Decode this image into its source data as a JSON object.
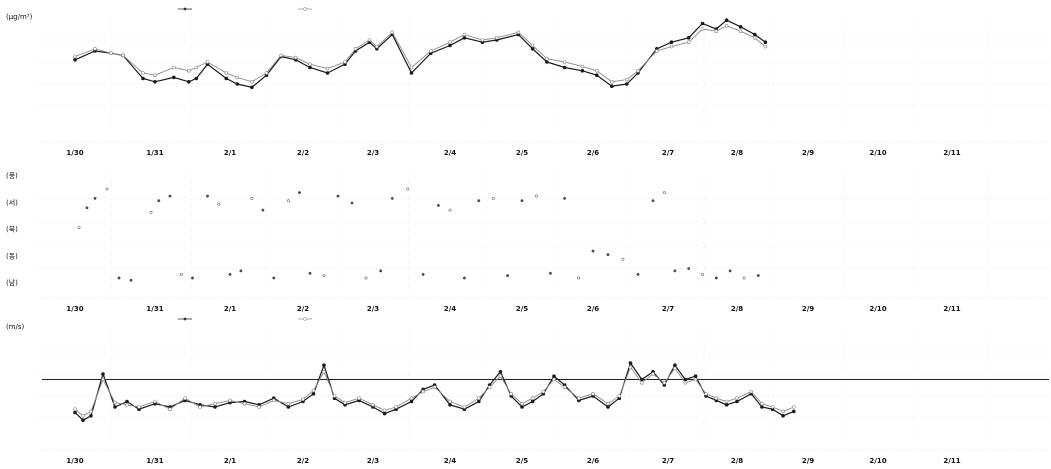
{
  "chart_data": [
    {
      "type": "line",
      "ylabel": "(μg/m³)",
      "x_categories": [
        "1/30",
        "1/31",
        "2/1",
        "2/2",
        "2/3",
        "2/4",
        "2/5",
        "2/6",
        "2/7",
        "2/8",
        "2/9",
        "2/10",
        "2/11"
      ],
      "legend_position": "top",
      "grid": true,
      "colors": {
        "series1": "#1a1a1a",
        "series2": "#8c8c8c"
      },
      "series": [
        {
          "name": "",
          "style": "dark-filled-markers",
          "points": [
            [
              0,
              0.62
            ],
            [
              0.25,
              0.7
            ],
            [
              0.45,
              0.68
            ],
            [
              0.6,
              0.66
            ],
            [
              0.85,
              0.45
            ],
            [
              1.0,
              0.42
            ],
            [
              1.25,
              0.46
            ],
            [
              1.45,
              0.42
            ],
            [
              1.55,
              0.45
            ],
            [
              1.7,
              0.58
            ],
            [
              1.95,
              0.45
            ],
            [
              2.1,
              0.4
            ],
            [
              2.3,
              0.37
            ],
            [
              2.5,
              0.48
            ],
            [
              2.7,
              0.65
            ],
            [
              2.9,
              0.62
            ],
            [
              3.1,
              0.55
            ],
            [
              3.35,
              0.5
            ],
            [
              3.6,
              0.58
            ],
            [
              3.75,
              0.7
            ],
            [
              3.95,
              0.78
            ],
            [
              4.05,
              0.72
            ],
            [
              4.25,
              0.85
            ],
            [
              4.5,
              0.5
            ],
            [
              4.75,
              0.68
            ],
            [
              5.0,
              0.75
            ],
            [
              5.2,
              0.82
            ],
            [
              5.45,
              0.78
            ],
            [
              5.65,
              0.8
            ],
            [
              5.95,
              0.85
            ],
            [
              6.15,
              0.72
            ],
            [
              6.35,
              0.6
            ],
            [
              6.6,
              0.55
            ],
            [
              6.85,
              0.52
            ],
            [
              7.05,
              0.48
            ],
            [
              7.25,
              0.38
            ],
            [
              7.45,
              0.4
            ],
            [
              7.6,
              0.5
            ],
            [
              7.85,
              0.72
            ],
            [
              8.05,
              0.78
            ],
            [
              8.3,
              0.82
            ],
            [
              8.5,
              0.95
            ],
            [
              8.7,
              0.9
            ],
            [
              8.85,
              0.98
            ],
            [
              9.05,
              0.92
            ],
            [
              9.25,
              0.85
            ],
            [
              9.4,
              0.78
            ]
          ]
        },
        {
          "name": "",
          "style": "light-open-markers",
          "points": [
            [
              0,
              0.65
            ],
            [
              0.25,
              0.72
            ],
            [
              0.45,
              0.68
            ],
            [
              0.6,
              0.66
            ],
            [
              0.85,
              0.5
            ],
            [
              1.0,
              0.48
            ],
            [
              1.25,
              0.55
            ],
            [
              1.45,
              0.52
            ],
            [
              1.55,
              0.55
            ],
            [
              1.7,
              0.6
            ],
            [
              1.95,
              0.5
            ],
            [
              2.1,
              0.46
            ],
            [
              2.3,
              0.42
            ],
            [
              2.5,
              0.5
            ],
            [
              2.7,
              0.66
            ],
            [
              2.9,
              0.64
            ],
            [
              3.1,
              0.58
            ],
            [
              3.35,
              0.54
            ],
            [
              3.6,
              0.6
            ],
            [
              3.75,
              0.72
            ],
            [
              3.95,
              0.8
            ],
            [
              4.05,
              0.74
            ],
            [
              4.25,
              0.87
            ],
            [
              4.5,
              0.55
            ],
            [
              4.75,
              0.7
            ],
            [
              5.0,
              0.78
            ],
            [
              5.2,
              0.85
            ],
            [
              5.45,
              0.8
            ],
            [
              5.65,
              0.82
            ],
            [
              5.95,
              0.87
            ],
            [
              6.15,
              0.75
            ],
            [
              6.35,
              0.63
            ],
            [
              6.6,
              0.6
            ],
            [
              6.85,
              0.56
            ],
            [
              7.05,
              0.52
            ],
            [
              7.25,
              0.42
            ],
            [
              7.45,
              0.44
            ],
            [
              7.6,
              0.52
            ],
            [
              7.85,
              0.7
            ],
            [
              8.05,
              0.74
            ],
            [
              8.3,
              0.78
            ],
            [
              8.5,
              0.9
            ],
            [
              8.7,
              0.88
            ],
            [
              8.85,
              0.93
            ],
            [
              9.05,
              0.88
            ],
            [
              9.25,
              0.82
            ],
            [
              9.4,
              0.74
            ]
          ]
        }
      ]
    },
    {
      "type": "scatter",
      "y_tick_labels": [
        "(풍)",
        "(서)",
        "(북)",
        "(동)",
        "(남)"
      ],
      "x_categories": [
        "1/30",
        "1/31",
        "2/1",
        "2/2",
        "2/3",
        "2/4",
        "2/5",
        "2/6",
        "2/7",
        "2/8",
        "2/9",
        "2/10",
        "2/11"
      ],
      "grid": true,
      "series": [
        {
          "name": "",
          "style": "small-dots",
          "points": [
            [
              0.05,
              0.55
            ],
            [
              0.15,
              0.72
            ],
            [
              0.25,
              0.8
            ],
            [
              0.4,
              0.88
            ],
            [
              0.55,
              0.12
            ],
            [
              0.7,
              0.1
            ],
            [
              0.95,
              0.68
            ],
            [
              1.05,
              0.78
            ],
            [
              1.2,
              0.82
            ],
            [
              1.35,
              0.15
            ],
            [
              1.5,
              0.12
            ],
            [
              1.7,
              0.82
            ],
            [
              1.85,
              0.75
            ],
            [
              2.0,
              0.15
            ],
            [
              2.15,
              0.18
            ],
            [
              2.3,
              0.8
            ],
            [
              2.45,
              0.7
            ],
            [
              2.6,
              0.12
            ],
            [
              2.8,
              0.78
            ],
            [
              2.95,
              0.85
            ],
            [
              3.1,
              0.16
            ],
            [
              3.3,
              0.14
            ],
            [
              3.5,
              0.82
            ],
            [
              3.7,
              0.76
            ],
            [
              3.9,
              0.12
            ],
            [
              4.1,
              0.18
            ],
            [
              4.25,
              0.8
            ],
            [
              4.45,
              0.88
            ],
            [
              4.65,
              0.15
            ],
            [
              4.85,
              0.74
            ],
            [
              5.0,
              0.7
            ],
            [
              5.2,
              0.12
            ],
            [
              5.4,
              0.78
            ],
            [
              5.6,
              0.8
            ],
            [
              5.8,
              0.14
            ],
            [
              6.0,
              0.78
            ],
            [
              6.2,
              0.82
            ],
            [
              6.4,
              0.16
            ],
            [
              6.6,
              0.8
            ],
            [
              6.8,
              0.12
            ],
            [
              7.0,
              0.35
            ],
            [
              7.2,
              0.32
            ],
            [
              7.4,
              0.28
            ],
            [
              7.6,
              0.15
            ],
            [
              7.8,
              0.78
            ],
            [
              7.95,
              0.85
            ],
            [
              8.1,
              0.18
            ],
            [
              8.3,
              0.2
            ],
            [
              8.5,
              0.15
            ],
            [
              8.7,
              0.12
            ],
            [
              8.9,
              0.18
            ],
            [
              9.1,
              0.12
            ],
            [
              9.3,
              0.14
            ]
          ]
        }
      ]
    },
    {
      "type": "line",
      "ylabel": "(m/s)",
      "x_categories": [
        "1/30",
        "1/31",
        "2/1",
        "2/2",
        "2/3",
        "2/4",
        "2/5",
        "2/6",
        "2/7",
        "2/8",
        "2/9",
        "2/10",
        "2/11"
      ],
      "legend_position": "top",
      "grid": true,
      "reference_line": 0.55,
      "series": [
        {
          "name": "",
          "style": "dark-filled-markers",
          "points": [
            [
              0,
              0.25
            ],
            [
              0.1,
              0.18
            ],
            [
              0.2,
              0.22
            ],
            [
              0.35,
              0.6
            ],
            [
              0.5,
              0.3
            ],
            [
              0.65,
              0.35
            ],
            [
              0.8,
              0.28
            ],
            [
              1.0,
              0.33
            ],
            [
              1.2,
              0.3
            ],
            [
              1.4,
              0.36
            ],
            [
              1.6,
              0.32
            ],
            [
              1.8,
              0.3
            ],
            [
              2.0,
              0.34
            ],
            [
              2.2,
              0.35
            ],
            [
              2.4,
              0.32
            ],
            [
              2.6,
              0.38
            ],
            [
              2.8,
              0.3
            ],
            [
              3.0,
              0.35
            ],
            [
              3.15,
              0.42
            ],
            [
              3.3,
              0.68
            ],
            [
              3.45,
              0.38
            ],
            [
              3.6,
              0.32
            ],
            [
              3.8,
              0.36
            ],
            [
              4.0,
              0.3
            ],
            [
              4.15,
              0.24
            ],
            [
              4.3,
              0.28
            ],
            [
              4.5,
              0.35
            ],
            [
              4.65,
              0.46
            ],
            [
              4.8,
              0.5
            ],
            [
              5.0,
              0.32
            ],
            [
              5.2,
              0.28
            ],
            [
              5.4,
              0.35
            ],
            [
              5.55,
              0.5
            ],
            [
              5.7,
              0.62
            ],
            [
              5.85,
              0.4
            ],
            [
              6.0,
              0.3
            ],
            [
              6.15,
              0.35
            ],
            [
              6.3,
              0.42
            ],
            [
              6.45,
              0.58
            ],
            [
              6.6,
              0.5
            ],
            [
              6.8,
              0.36
            ],
            [
              7.0,
              0.4
            ],
            [
              7.2,
              0.3
            ],
            [
              7.35,
              0.38
            ],
            [
              7.5,
              0.7
            ],
            [
              7.65,
              0.55
            ],
            [
              7.8,
              0.62
            ],
            [
              7.95,
              0.5
            ],
            [
              8.1,
              0.68
            ],
            [
              8.25,
              0.55
            ],
            [
              8.4,
              0.58
            ],
            [
              8.55,
              0.4
            ],
            [
              8.7,
              0.36
            ],
            [
              8.85,
              0.32
            ],
            [
              9.0,
              0.35
            ],
            [
              9.2,
              0.42
            ],
            [
              9.35,
              0.3
            ],
            [
              9.5,
              0.28
            ],
            [
              9.65,
              0.22
            ],
            [
              9.8,
              0.26
            ]
          ]
        },
        {
          "name": "",
          "style": "light-open-markers",
          "points": [
            [
              0,
              0.28
            ],
            [
              0.1,
              0.22
            ],
            [
              0.2,
              0.26
            ],
            [
              0.35,
              0.55
            ],
            [
              0.5,
              0.34
            ],
            [
              0.65,
              0.32
            ],
            [
              0.8,
              0.3
            ],
            [
              1.0,
              0.35
            ],
            [
              1.2,
              0.28
            ],
            [
              1.4,
              0.38
            ],
            [
              1.6,
              0.3
            ],
            [
              1.8,
              0.33
            ],
            [
              2.0,
              0.36
            ],
            [
              2.2,
              0.33
            ],
            [
              2.4,
              0.3
            ],
            [
              2.6,
              0.36
            ],
            [
              2.8,
              0.33
            ],
            [
              3.0,
              0.37
            ],
            [
              3.15,
              0.45
            ],
            [
              3.3,
              0.62
            ],
            [
              3.45,
              0.4
            ],
            [
              3.6,
              0.34
            ],
            [
              3.8,
              0.38
            ],
            [
              4.0,
              0.32
            ],
            [
              4.15,
              0.27
            ],
            [
              4.3,
              0.3
            ],
            [
              4.5,
              0.38
            ],
            [
              4.65,
              0.44
            ],
            [
              4.8,
              0.48
            ],
            [
              5.0,
              0.35
            ],
            [
              5.2,
              0.3
            ],
            [
              5.4,
              0.38
            ],
            [
              5.55,
              0.48
            ],
            [
              5.7,
              0.58
            ],
            [
              5.85,
              0.42
            ],
            [
              6.0,
              0.33
            ],
            [
              6.15,
              0.38
            ],
            [
              6.3,
              0.44
            ],
            [
              6.45,
              0.55
            ],
            [
              6.6,
              0.48
            ],
            [
              6.8,
              0.38
            ],
            [
              7.0,
              0.42
            ],
            [
              7.2,
              0.33
            ],
            [
              7.35,
              0.4
            ],
            [
              7.5,
              0.66
            ],
            [
              7.65,
              0.52
            ],
            [
              7.8,
              0.6
            ],
            [
              7.95,
              0.52
            ],
            [
              8.1,
              0.65
            ],
            [
              8.25,
              0.52
            ],
            [
              8.4,
              0.55
            ],
            [
              8.55,
              0.42
            ],
            [
              8.7,
              0.38
            ],
            [
              8.85,
              0.35
            ],
            [
              9.0,
              0.38
            ],
            [
              9.2,
              0.44
            ],
            [
              9.35,
              0.33
            ],
            [
              9.5,
              0.3
            ],
            [
              9.65,
              0.26
            ],
            [
              9.8,
              0.3
            ]
          ]
        }
      ]
    }
  ]
}
